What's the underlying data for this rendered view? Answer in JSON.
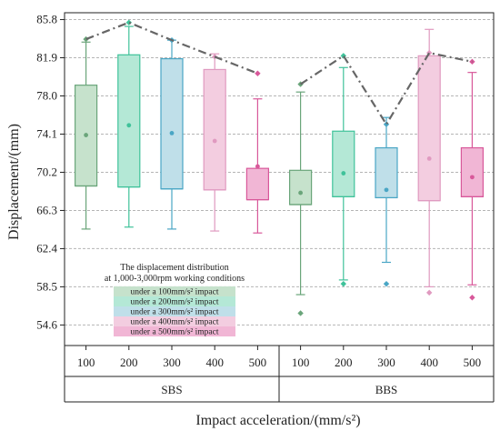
{
  "chart_data": {
    "type": "box",
    "ylabel": "Displacement/(mm)",
    "xlabel": "Impact acceleration/(mm/s²)",
    "ylim": [
      52.5,
      86.5
    ],
    "yticks": [
      "54.6",
      "58.5",
      "62.4",
      "66.3",
      "70.2",
      "74.1",
      "78.0",
      "81.9",
      "85.8"
    ],
    "grid": "horizontal-dashed",
    "legend": {
      "position": "lower-left",
      "title_line1": "The displacement distribution",
      "title_line2": "at 1,000-3,000rpm working conditions",
      "entries": [
        {
          "label": "under a 100mm/s² impact",
          "color": "#c6e2cc"
        },
        {
          "label": "under a 200mm/s² impact",
          "color": "#b4e8d6"
        },
        {
          "label": "under a 300mm/s² impact",
          "color": "#bfdfe9"
        },
        {
          "label": "under a 400mm/s² impact",
          "color": "#f3cde0"
        },
        {
          "label": "under a 500mm/s² impact",
          "color": "#f1b6d5"
        }
      ]
    },
    "groups": [
      {
        "name": "SBS",
        "boxes": [
          {
            "category": "100",
            "whisker_low": 64.4,
            "q1": 68.8,
            "median": 68.8,
            "q3": 79.1,
            "whisker_high": 83.5,
            "mean": 74.0,
            "max_point": 83.8,
            "min_point": null,
            "fill": "#c6e2cc",
            "stroke": "#6aa57a"
          },
          {
            "category": "200",
            "whisker_low": 64.6,
            "q1": 68.7,
            "median": 68.7,
            "q3": 82.2,
            "whisker_high": 85.1,
            "mean": 75.0,
            "max_point": 85.5,
            "min_point": null,
            "fill": "#b4e8d6",
            "stroke": "#3fc29a"
          },
          {
            "category": "300",
            "whisker_low": 64.4,
            "q1": 68.5,
            "median": 68.5,
            "q3": 81.8,
            "whisker_high": 83.7,
            "mean": 74.2,
            "max_point": 83.7,
            "min_point": null,
            "fill": "#bfdfe9",
            "stroke": "#4aa6c5"
          },
          {
            "category": "400",
            "whisker_low": 64.2,
            "q1": 68.4,
            "median": 68.4,
            "q3": 80.7,
            "whisker_high": 82.3,
            "mean": 73.4,
            "max_point": 82.0,
            "min_point": null,
            "fill": "#f3cde0",
            "stroke": "#e09ac0"
          },
          {
            "category": "500",
            "whisker_low": 64.0,
            "q1": 67.4,
            "median": 67.4,
            "q3": 70.6,
            "whisker_high": 77.7,
            "mean": 70.8,
            "max_point": 80.3,
            "min_point": null,
            "fill": "#f1b6d5",
            "stroke": "#d8589a"
          }
        ]
      },
      {
        "name": "BBS",
        "boxes": [
          {
            "category": "100",
            "whisker_low": 57.7,
            "q1": 66.9,
            "median": 66.9,
            "q3": 70.4,
            "whisker_high": 78.4,
            "mean": 68.1,
            "max_point": 79.2,
            "min_point": 55.8,
            "fill": "#c6e2cc",
            "stroke": "#6aa57a"
          },
          {
            "category": "200",
            "whisker_low": 59.2,
            "q1": 67.7,
            "median": 67.7,
            "q3": 74.4,
            "whisker_high": 80.9,
            "mean": 70.1,
            "max_point": 82.1,
            "min_point": 58.8,
            "fill": "#b4e8d6",
            "stroke": "#3fc29a"
          },
          {
            "category": "300",
            "whisker_low": 61.0,
            "q1": 67.6,
            "median": 67.6,
            "q3": 72.7,
            "whisker_high": 75.8,
            "mean": 68.4,
            "max_point": 75.1,
            "min_point": 58.8,
            "fill": "#bfdfe9",
            "stroke": "#4aa6c5"
          },
          {
            "category": "400",
            "whisker_low": 58.5,
            "q1": 67.3,
            "median": 67.3,
            "q3": 82.1,
            "whisker_high": 84.8,
            "mean": 71.6,
            "max_point": 82.4,
            "min_point": 57.9,
            "fill": "#f3cde0",
            "stroke": "#e09ac0"
          },
          {
            "category": "500",
            "whisker_low": 58.7,
            "q1": 67.7,
            "median": 67.7,
            "q3": 72.7,
            "whisker_high": 80.4,
            "mean": 69.7,
            "max_point": 81.5,
            "min_point": 57.4,
            "fill": "#f1b6d5",
            "stroke": "#d8589a"
          }
        ]
      }
    ],
    "trend_line": {
      "style": "dash-dot",
      "color": "#666666",
      "connects": "max_point"
    }
  }
}
